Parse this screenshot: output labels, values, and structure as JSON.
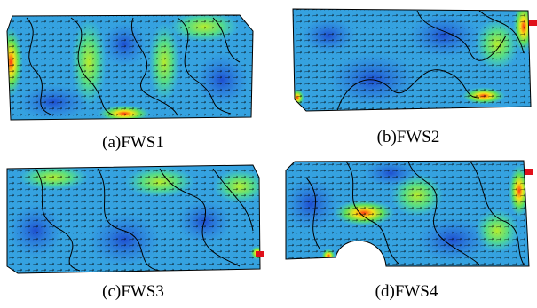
{
  "panels": [
    {
      "caption": "(a)FWS1"
    },
    {
      "caption": "(b)FWS2"
    },
    {
      "caption": "(c)FWS3"
    },
    {
      "caption": "(d)FWS4"
    }
  ]
}
